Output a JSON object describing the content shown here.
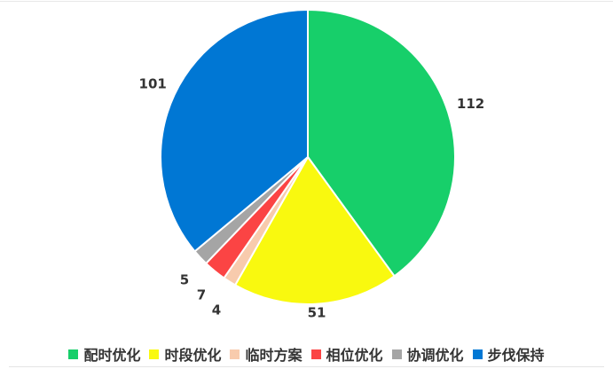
{
  "chart_data": {
    "type": "pie",
    "categories": [
      "配时优化",
      "时段优化",
      "临时方案",
      "相位优化",
      "协调优化",
      "步伐保持"
    ],
    "values": [
      112,
      51,
      4,
      7,
      5,
      101
    ],
    "colors": [
      "#17cf6a",
      "#f9f90f",
      "#f8cbad",
      "#fb4444",
      "#a5a5a5",
      "#0077d4"
    ],
    "start_angle": "top, clockwise",
    "data_labels": true,
    "legend": "bottom"
  }
}
